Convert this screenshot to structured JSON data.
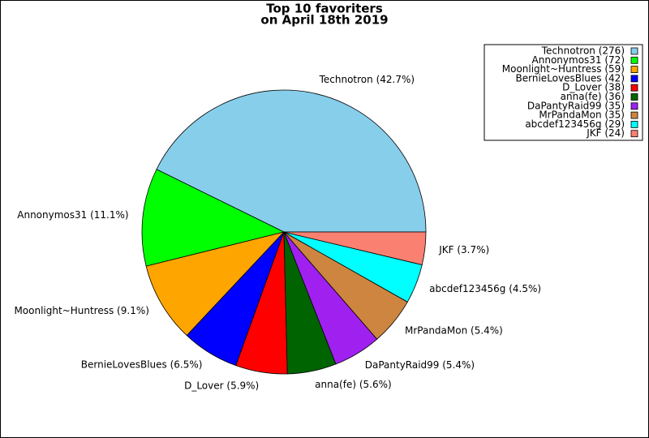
{
  "chart_data": {
    "type": "pie",
    "title": "Top 10 favoriters",
    "subtitle": "on April 18th 2019",
    "categories": [
      "Technotron (276)",
      "Annonymos31 (72)",
      "Moonlight~Huntress (59)",
      "BernieLovesBlues (42)",
      "D_Lover (38)",
      "anna(fe) (36)",
      "DaPantyRaid99 (35)",
      "MrPandaMon (35)",
      "abcdef123456g (29)",
      "JKF (24)"
    ],
    "values": [
      276,
      72,
      59,
      42,
      38,
      36,
      35,
      35,
      29,
      24
    ],
    "slice_labels": [
      "Technotron (42.7%)",
      "Annonymos31 (11.1%)",
      "Moonlight~Huntress (9.1%)",
      "BernieLovesBlues (6.5%)",
      "D_Lover (5.9%)",
      "anna(fe) (5.6%)",
      "DaPantyRaid99 (5.4%)",
      "MrPandaMon (5.4%)",
      "abcdef123456g (4.5%)",
      "JKF (3.7%)"
    ],
    "colors": [
      "#87ceeb",
      "#00ff00",
      "#ffa500",
      "#0000ff",
      "#ff0000",
      "#006400",
      "#a020f0",
      "#cd853f",
      "#00ffff",
      "#fa8072"
    ],
    "legend": "upper right"
  }
}
